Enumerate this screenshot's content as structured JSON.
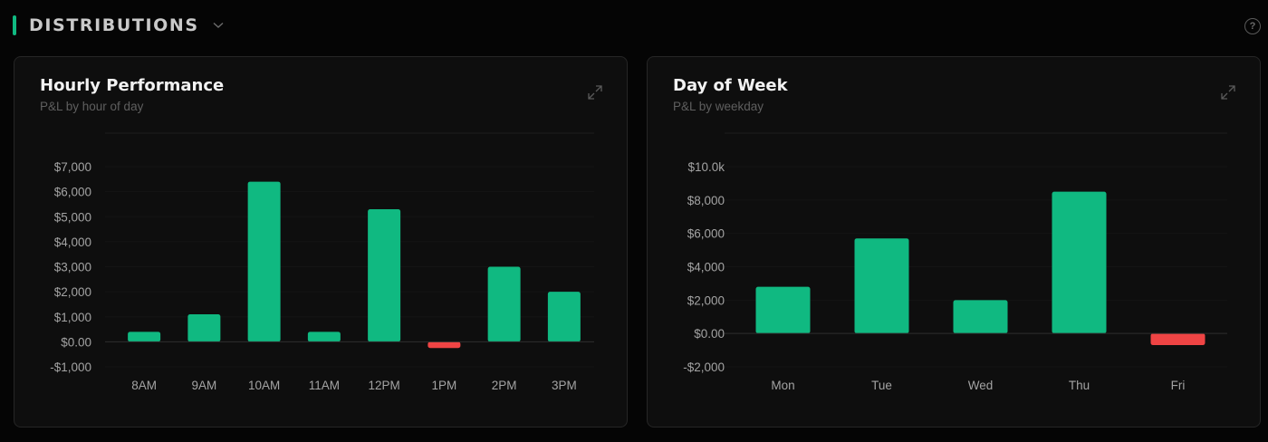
{
  "section": {
    "title": "DISTRIBUTIONS",
    "accent_color": "#10b981",
    "chevron_icon": "chevron-down-icon",
    "help_icon": "question-circle-icon",
    "help_glyph": "?"
  },
  "colors": {
    "positive": "#10b981",
    "negative": "#ef4444",
    "grid": "#1e1e1e",
    "zero_line": "#2e2e2e"
  },
  "cards": [
    {
      "title": "Hourly Performance",
      "subtitle": "P&L by hour of day",
      "expand_icon": "expand-icon"
    },
    {
      "title": "Day of Week",
      "subtitle": "P&L by weekday",
      "expand_icon": "expand-icon"
    }
  ],
  "chart_data": [
    {
      "type": "bar",
      "title": "Hourly Performance",
      "subtitle": "P&L by hour of day",
      "categories": [
        "8AM",
        "9AM",
        "10AM",
        "11AM",
        "12PM",
        "1PM",
        "2PM",
        "3PM"
      ],
      "values": [
        400,
        1100,
        6400,
        400,
        5300,
        -250,
        3000,
        2000
      ],
      "yticks": [
        7000,
        6000,
        5000,
        4000,
        3000,
        2000,
        1000,
        0,
        -1000
      ],
      "ytick_labels": [
        "$7,000",
        "$6,000",
        "$5,000",
        "$4,000",
        "$3,000",
        "$2,000",
        "$1,000",
        "$0.00",
        "-$1,000"
      ],
      "ylim": [
        -1000,
        7000
      ],
      "grid": "faint horizontal",
      "legend": "none"
    },
    {
      "type": "bar",
      "title": "Day of Week",
      "subtitle": "P&L by weekday",
      "categories": [
        "Mon",
        "Tue",
        "Wed",
        "Thu",
        "Fri"
      ],
      "values": [
        2800,
        5700,
        2000,
        8500,
        -700
      ],
      "yticks": [
        10000,
        8000,
        6000,
        4000,
        2000,
        0,
        -2000
      ],
      "ytick_labels": [
        "$10.0k",
        "$8,000",
        "$6,000",
        "$4,000",
        "$2,000",
        "$0.00",
        "-$2,000"
      ],
      "ylim": [
        -2000,
        10000
      ],
      "grid": "faint horizontal",
      "legend": "none"
    }
  ]
}
